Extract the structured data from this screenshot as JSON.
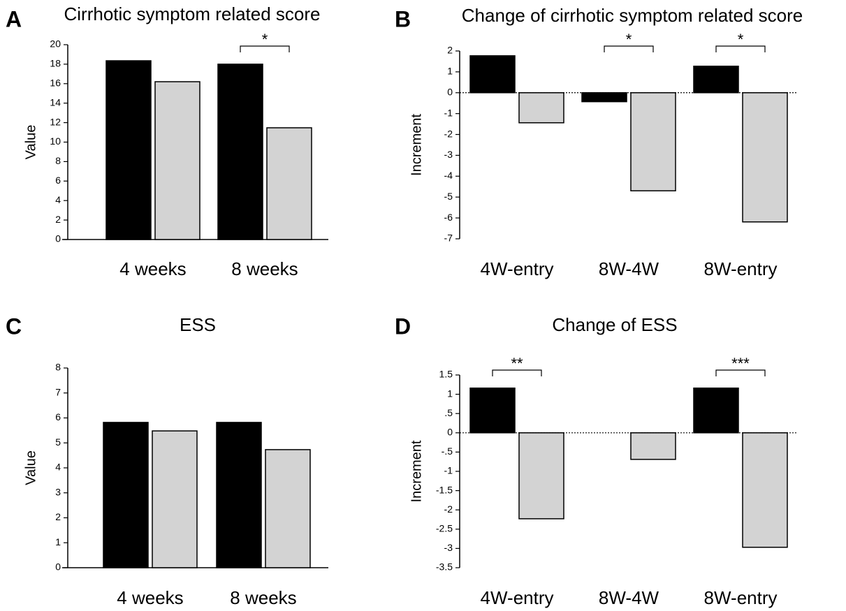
{
  "chart_data": [
    {
      "type": "bar",
      "label": "A",
      "title": "Cirrhotic symptom related score",
      "y_label": "Value",
      "categories": [
        "4 weeks",
        "8 weeks"
      ],
      "series": [
        {
          "color": "#000000",
          "values": [
            18.35,
            18.0
          ]
        },
        {
          "color": "#d3d3d3",
          "values": [
            16.2,
            11.47
          ]
        }
      ],
      "ylim": [
        0,
        20
      ],
      "yticks": [
        0,
        2,
        4,
        6,
        8,
        10,
        12,
        14,
        16,
        18,
        20
      ],
      "zero_line": false,
      "annotations": [
        {
          "text": "*",
          "category": "8 weeks"
        }
      ]
    },
    {
      "type": "bar",
      "label": "B",
      "title": "Change of cirrhotic symptom related score",
      "y_label": "Increment",
      "categories": [
        "4W-entry",
        "8W-4W",
        "8W-entry"
      ],
      "series": [
        {
          "color": "#000000",
          "values": [
            1.77,
            -0.43,
            1.27
          ]
        },
        {
          "color": "#d3d3d3",
          "values": [
            -1.44,
            -4.7,
            -6.19
          ]
        }
      ],
      "ylim": [
        -7,
        2
      ],
      "yticks": [
        -7,
        -6,
        -5,
        -4,
        -3,
        -2,
        -1,
        0,
        1,
        2
      ],
      "zero_line": true,
      "annotations": [
        {
          "text": "*",
          "category": "8W-4W"
        },
        {
          "text": "*",
          "category": "8W-entry"
        }
      ]
    },
    {
      "type": "bar",
      "label": "C",
      "title": "ESS",
      "y_label": "Value",
      "categories": [
        "4 weeks",
        "8 weeks"
      ],
      "series": [
        {
          "color": "#000000",
          "values": [
            5.82,
            5.82
          ]
        },
        {
          "color": "#d3d3d3",
          "values": [
            5.48,
            4.73
          ]
        }
      ],
      "ylim": [
        0,
        8
      ],
      "yticks": [
        0,
        1,
        2,
        3,
        4,
        5,
        6,
        7,
        8
      ],
      "zero_line": false,
      "annotations": []
    },
    {
      "type": "bar",
      "label": "D",
      "title": "Change of ESS",
      "y_label": "Increment",
      "categories": [
        "4W-entry",
        "8W-4W",
        "8W-entry"
      ],
      "series": [
        {
          "color": "#000000",
          "values": [
            1.16,
            0,
            1.16
          ]
        },
        {
          "color": "#d3d3d3",
          "values": [
            -2.23,
            -0.69,
            -2.97
          ]
        }
      ],
      "ylim": [
        -3.5,
        1.5
      ],
      "yticks": [
        -3.5,
        -3,
        -2.5,
        -2,
        -1.5,
        -1,
        {
          "value": -0.5,
          "label": "-.5"
        },
        0,
        {
          "value": 0.5,
          "label": ".5"
        },
        1,
        1.5
      ],
      "zero_line": true,
      "annotations": [
        {
          "text": "**",
          "category": "4W-entry"
        },
        {
          "text": "***",
          "category": "8W-entry"
        }
      ]
    }
  ]
}
